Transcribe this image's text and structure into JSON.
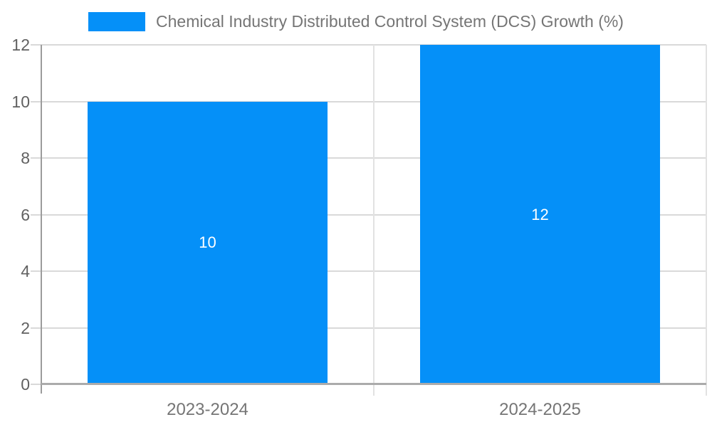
{
  "chart_data": {
    "type": "bar",
    "title": "Chemical Industry Distributed Control System (DCS) Growth (%)",
    "categories": [
      "2023-2024",
      "2024-2025"
    ],
    "values": [
      10,
      12
    ],
    "bar_labels": [
      "10",
      "12"
    ],
    "xlabel": "",
    "ylabel": "",
    "ylim": [
      0,
      12
    ],
    "yticks": [
      0,
      2,
      4,
      6,
      8,
      10,
      12
    ],
    "grid": true,
    "legend_position": "top-center"
  },
  "colors": {
    "bar": "#0590F8",
    "bar_label": "#FFFFFF",
    "gridline": "#D9D9D9",
    "vertical_gridline": "#E2E2E2",
    "baseline": "#ABABAB",
    "y_axis_line": "#9C9C9C",
    "tick_label": "#616161",
    "category_label": "#757575",
    "legend_text": "#757575",
    "background": "#FFFFFF"
  }
}
